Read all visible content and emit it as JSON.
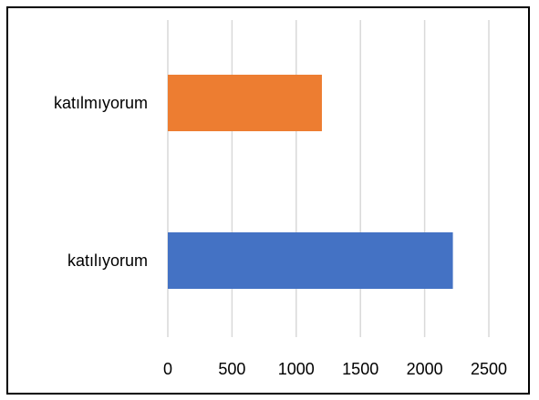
{
  "chart_data": {
    "type": "bar",
    "orientation": "horizontal",
    "title": "",
    "xlabel": "",
    "ylabel": "",
    "categories": [
      "katılmıyorum",
      "katılıyorum"
    ],
    "values": [
      1200,
      2220
    ],
    "bar_colors": [
      "#ED7D31",
      "#4472C4"
    ],
    "xlim": [
      0,
      2500
    ],
    "x_ticks": [
      "0",
      "500",
      "1000",
      "1500",
      "2000",
      "2500"
    ],
    "grid": "vertical",
    "gridline_color": "#D9D9D9",
    "legend": "none"
  }
}
